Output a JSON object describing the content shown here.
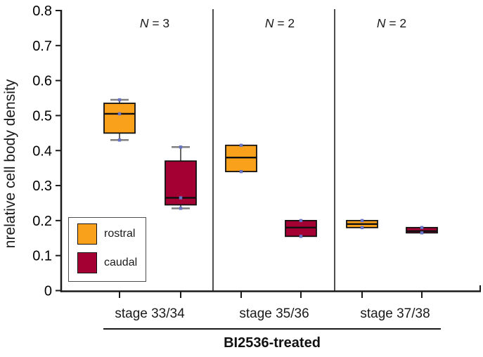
{
  "chart_data": {
    "type": "box",
    "title": "BI2536-treated",
    "ylabel": "nrelative cell body density",
    "xlabel": "",
    "ylim": [
      0,
      0.8
    ],
    "yticks": [
      0,
      0.1,
      0.2,
      0.3,
      0.4,
      0.5,
      0.6,
      0.7,
      0.8
    ],
    "ytick_labels": [
      "0",
      "0.1",
      "0.2",
      "0.3",
      "0.4",
      "0.5",
      "0.6",
      "0.7",
      "0.8"
    ],
    "grid": false,
    "legend_position": "lower left",
    "n_prefix": "N",
    "marker_color": "#6672C4",
    "axis_color": "#1a1a1a",
    "divider_color": "#3a3a3a",
    "series": [
      {
        "name": "rostral",
        "color": "#F9A11B"
      },
      {
        "name": "caudal",
        "color": "#A50034"
      }
    ],
    "groups": [
      {
        "label": "stage 33/34",
        "n_label": "N = 3",
        "n_suffix": " = 3",
        "boxes": [
          {
            "series": "rostral",
            "whisker_low": 0.43,
            "q1": 0.45,
            "median": 0.505,
            "q3": 0.535,
            "whisker_high": 0.545,
            "points": [
              0.545,
              0.505,
              0.43
            ]
          },
          {
            "series": "caudal",
            "whisker_low": 0.235,
            "q1": 0.245,
            "median": 0.265,
            "q3": 0.37,
            "whisker_high": 0.41,
            "points": [
              0.41,
              0.265,
              0.235
            ]
          }
        ]
      },
      {
        "label": "stage 35/36",
        "n_label": "N = 2",
        "n_suffix": " = 2",
        "boxes": [
          {
            "series": "rostral",
            "whisker_low": null,
            "q1": 0.34,
            "median": 0.38,
            "q3": 0.415,
            "whisker_high": null,
            "points": [
              0.415,
              0.34
            ]
          },
          {
            "series": "caudal",
            "whisker_low": null,
            "q1": 0.155,
            "median": 0.18,
            "q3": 0.2,
            "whisker_high": null,
            "points": [
              0.2,
              0.155
            ]
          }
        ]
      },
      {
        "label": "stage 37/38",
        "n_label": "N = 2",
        "n_suffix": " = 2",
        "boxes": [
          {
            "series": "rostral",
            "whisker_low": null,
            "q1": 0.18,
            "median": 0.19,
            "q3": 0.2,
            "whisker_high": null,
            "points": [
              0.2,
              0.18
            ]
          },
          {
            "series": "caudal",
            "whisker_low": null,
            "q1": 0.165,
            "median": 0.17,
            "q3": 0.18,
            "whisker_high": null,
            "points": [
              0.18,
              0.165
            ]
          }
        ]
      }
    ]
  }
}
